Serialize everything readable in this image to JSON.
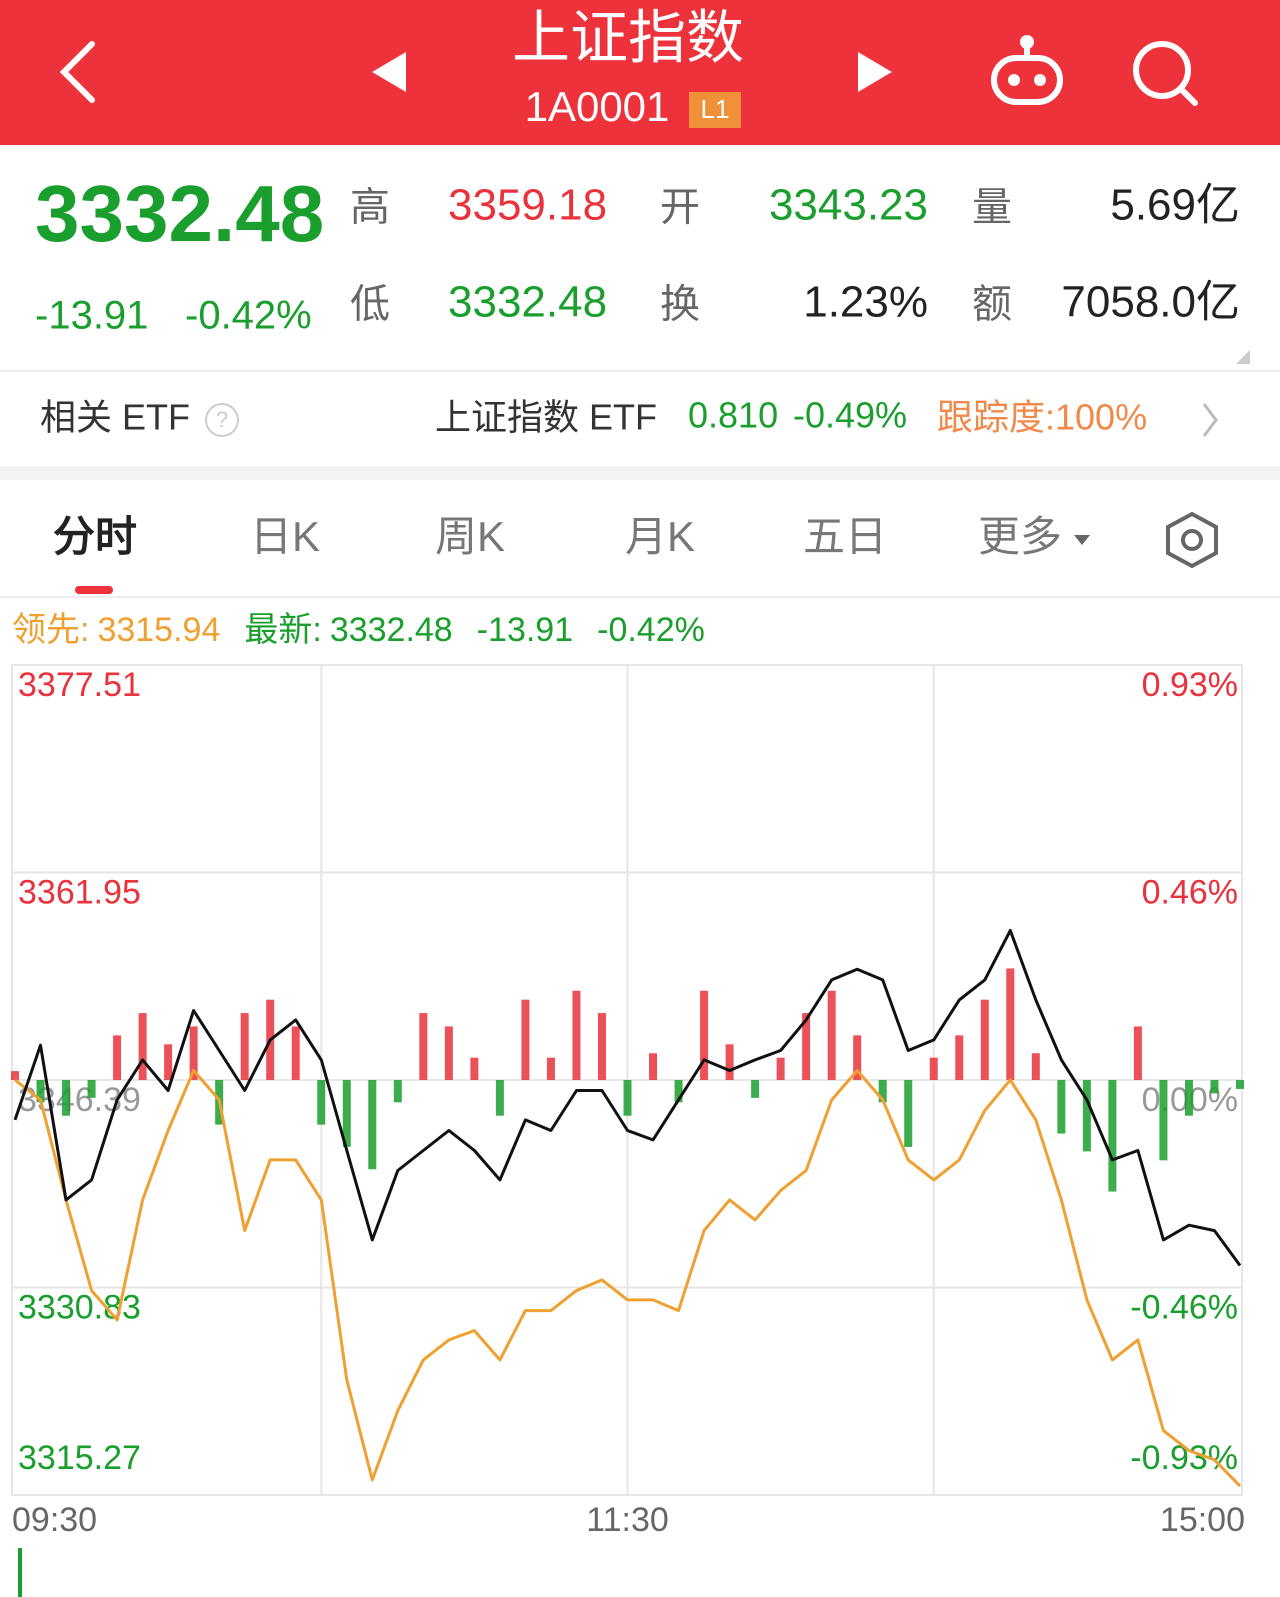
{
  "header": {
    "title": "上证指数",
    "code": "1A0001",
    "badge": "L1"
  },
  "quote": {
    "price": "3332.48",
    "change": "-13.91",
    "change_pct": "-0.42%",
    "high_label": "高",
    "high": "3359.18",
    "open_label": "开",
    "open": "3343.23",
    "volume_label": "量",
    "volume": "5.69亿",
    "low_label": "低",
    "low": "3332.48",
    "turnover_label": "换",
    "turnover": "1.23%",
    "amount_label": "额",
    "amount": "7058.0亿"
  },
  "etf": {
    "label": "相关 ETF",
    "name": "上证指数 ETF",
    "price": "0.810",
    "change": "-0.49%",
    "tracking": "跟踪度:100%"
  },
  "tabs": [
    "分时",
    "日K",
    "周K",
    "月K",
    "五日",
    "更多"
  ],
  "chart_data": {
    "type": "line",
    "change": "-13.91",
    "change_pct": "-0.42%",
    "x": [
      0,
      5,
      10,
      15,
      20,
      25,
      30,
      35,
      40,
      45,
      50,
      55,
      60,
      65,
      70,
      75,
      80,
      85,
      90,
      95,
      100,
      105,
      110,
      115,
      120,
      125,
      130,
      135,
      140,
      145,
      150,
      155,
      160,
      165,
      170,
      175,
      180,
      185,
      190,
      195,
      200,
      205,
      210,
      215,
      220,
      225,
      230,
      235,
      240
    ],
    "xlim": [
      0,
      240
    ],
    "xticks": [
      {
        "value": 0,
        "label": "09:30"
      },
      {
        "value": 120,
        "label": "11:30"
      },
      {
        "value": 240,
        "label": "15:00"
      }
    ],
    "x_gridlines": [
      60,
      120,
      180
    ],
    "ylim": [
      3315.27,
      3377.51
    ],
    "yticks": [
      3377.51,
      3361.95,
      3346.39,
      3330.83,
      3315.27
    ],
    "y2lim": [
      -0.93,
      0.93
    ],
    "y2ticks": [
      {
        "value": 0.93,
        "label": "0.93%"
      },
      {
        "value": 0.46,
        "label": "0.46%"
      },
      {
        "value": 0,
        "label": "0.00%"
      },
      {
        "value": -0.46,
        "label": "-0.46%"
      },
      {
        "value": -0.93,
        "label": "-0.93%"
      }
    ],
    "grid": true,
    "up_color": "#e8323c",
    "down_color": "#1a9e2d",
    "flat_color": "#999999",
    "series": [
      {
        "name": "领先:",
        "color": "#f0a030",
        "values": [
          3346.4,
          3344.9,
          3337.4,
          3330.6,
          3328.4,
          3337.4,
          3342.6,
          3347.1,
          3344.9,
          3335.1,
          3340.4,
          3340.4,
          3337.4,
          3323.9,
          3316.4,
          3321.6,
          3325.4,
          3326.9,
          3327.6,
          3325.4,
          3329.1,
          3329.1,
          3330.6,
          3331.4,
          3329.9,
          3329.9,
          3329.1,
          3335.1,
          3337.4,
          3335.9,
          3338.1,
          3339.6,
          3344.9,
          3347.1,
          3344.9,
          3340.4,
          3338.9,
          3340.4,
          3344.1,
          3346.4,
          3343.4,
          3337.4,
          3329.9,
          3325.4,
          3326.9,
          3320.1,
          3318.6,
          3317.9,
          3315.94
        ]
      },
      {
        "name": "最新:",
        "color": "#111111",
        "values": [
          3343.4,
          3349.0,
          3337.4,
          3338.9,
          3344.9,
          3347.9,
          3345.6,
          3351.6,
          3348.6,
          3345.6,
          3349.4,
          3350.9,
          3347.9,
          3341.1,
          3334.4,
          3339.6,
          3341.1,
          3342.6,
          3341.1,
          3338.9,
          3343.4,
          3342.6,
          3345.6,
          3345.6,
          3342.6,
          3341.9,
          3344.9,
          3347.9,
          3347.1,
          3347.9,
          3348.6,
          3350.9,
          3353.9,
          3354.7,
          3353.9,
          3348.6,
          3349.4,
          3352.4,
          3353.9,
          3357.6,
          3352.4,
          3347.9,
          3344.9,
          3340.4,
          3341.1,
          3334.4,
          3335.5,
          3335.1,
          3332.48
        ]
      }
    ],
    "bars": {
      "axis": "y2",
      "values": [
        0.02,
        -0.05,
        -0.08,
        -0.04,
        0.1,
        0.15,
        0.08,
        0.12,
        -0.1,
        0.15,
        0.18,
        0.12,
        -0.1,
        -0.15,
        -0.2,
        -0.05,
        0.15,
        0.12,
        0.05,
        -0.08,
        0.18,
        0.05,
        0.2,
        0.15,
        -0.08,
        0.06,
        -0.05,
        0.2,
        0.08,
        -0.04,
        0.05,
        0.15,
        0.2,
        0.1,
        -0.05,
        -0.15,
        0.05,
        0.1,
        0.18,
        0.25,
        0.06,
        -0.12,
        -0.16,
        -0.25,
        0.12,
        -0.18,
        -0.08,
        -0.03,
        -0.02
      ]
    }
  }
}
